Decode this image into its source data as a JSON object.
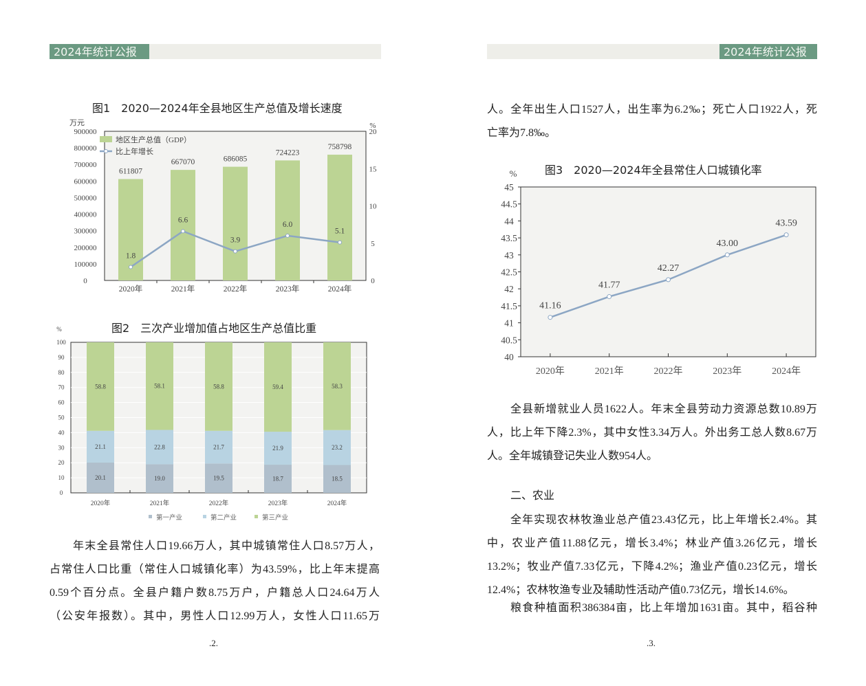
{
  "header": {
    "title_left": "2024年统计公报",
    "title_right": "2024年统计公报"
  },
  "page_numbers": {
    "left": ".2.",
    "right": ".3."
  },
  "colors": {
    "header_tab": "#6b9a82",
    "gdp_bar": "#bcd494",
    "growth_line": "#8ca6c4",
    "primary": "#b0bfcc",
    "secondary": "#b8d3e2",
    "tertiary": "#bcd494"
  },
  "chart_data": [
    {
      "type": "bar",
      "title": "图1　2020—2024年全县地区生产总值及增长速度",
      "categories": [
        "2020年",
        "2021年",
        "2022年",
        "2023年",
        "2024年"
      ],
      "ylabel": "万元",
      "y2label": "%",
      "ylim": [
        0,
        900000
      ],
      "y2lim": [
        0,
        20
      ],
      "yticks": [
        "0",
        "100000",
        "200000",
        "300000",
        "400000",
        "500000",
        "600000",
        "700000",
        "800000",
        "900000"
      ],
      "y2ticks": [
        "0",
        "5",
        "10",
        "15",
        "20"
      ],
      "legend_position": "top-left",
      "series": [
        {
          "name": "地区生产总值（GDP）",
          "type": "bar",
          "axis": "left",
          "values": [
            611807,
            667070,
            686085,
            724223,
            758798
          ],
          "labels": [
            "611807",
            "667070",
            "686085",
            "724223",
            "758798"
          ]
        },
        {
          "name": "比上年增长",
          "type": "line",
          "axis": "right",
          "values": [
            1.8,
            6.6,
            3.9,
            6.0,
            5.1
          ],
          "labels": [
            "1.8",
            "6.6",
            "3.9",
            "6.0",
            "5.1"
          ]
        }
      ]
    },
    {
      "type": "bar",
      "stacked": true,
      "title": "图2　三次产业增加值占地区生产总值比重",
      "categories": [
        "2020年",
        "2021年",
        "2022年",
        "2023年",
        "2024年"
      ],
      "ylabel": "%",
      "ylim": [
        0,
        100
      ],
      "yticks": [
        "0",
        "10",
        "20",
        "30",
        "40",
        "50",
        "60",
        "70",
        "80",
        "90",
        "100"
      ],
      "legend_position": "bottom",
      "series": [
        {
          "name": "第一产业",
          "values": [
            20.1,
            19.0,
            19.5,
            18.7,
            18.5
          ],
          "labels": [
            "20.1",
            "19.0",
            "19.5",
            "18.7",
            "18.5"
          ]
        },
        {
          "name": "第二产业",
          "values": [
            21.1,
            22.8,
            21.7,
            21.9,
            23.2
          ],
          "labels": [
            "21.1",
            "22.8",
            "21.7",
            "21.9",
            "23.2"
          ]
        },
        {
          "name": "第三产业",
          "values": [
            58.8,
            58.1,
            58.8,
            59.4,
            58.3
          ],
          "labels": [
            "58.8",
            "58.1",
            "58.8",
            "59.4",
            "58.3"
          ]
        }
      ]
    },
    {
      "type": "line",
      "title": "图3　2020—2024年全县常住人口城镇化率",
      "categories": [
        "2020年",
        "2021年",
        "2022年",
        "2023年",
        "2024年"
      ],
      "ylabel": "%",
      "ylim": [
        40,
        45
      ],
      "yticks": [
        "40",
        "40.5",
        "41",
        "41.5",
        "42",
        "42.5",
        "43",
        "43.5",
        "44",
        "44.5",
        "45"
      ],
      "series": [
        {
          "values": [
            41.16,
            41.77,
            42.27,
            43.0,
            43.59
          ],
          "labels": [
            "41.16",
            "41.77",
            "42.27",
            "43.00",
            "43.59"
          ]
        }
      ]
    }
  ],
  "left_text": [
    "年末全县常住人口19.66万人，其中城镇常住人口8.57万人，",
    "占常住人口比重（常住人口城镇化率）为43.59%，比上年末提高",
    "0.59个百分点。全县户籍户数8.75万户，户籍总人口24.64万人",
    "（公安年报数）。其中，男性人口12.99万人，女性人口11.65万"
  ],
  "right_top_text": [
    "人。全年出生人口1527人，出生率为6.2‰；死亡人口1922人，死",
    "亡率为7.8‰。"
  ],
  "right_employment_text": [
    "全县新增就业人员1622人。年末全县劳动力资源总数10.89万",
    "人，比上年下降2.3%，其中女性3.34万人。外出务工总人数8.67万",
    "人。全年城镇登记失业人数954人。"
  ],
  "section_heading": "二、农业",
  "right_agri_text": [
    "全年实现农林牧渔业总产值23.43亿元，比上年增长2.4%。其",
    "中，农业产值11.88亿元，增长3.4%；林业产值3.26亿元，增长",
    "13.2%；牧业产值7.33亿元，下降4.2%；渔业产值0.23亿元，增长",
    "12.4%；农林牧渔专业及辅助性活动产值0.73亿元，增长14.6%。"
  ],
  "right_grain_text": "粮食种植面积386384亩，比上年增加1631亩。其中，稻谷种"
}
